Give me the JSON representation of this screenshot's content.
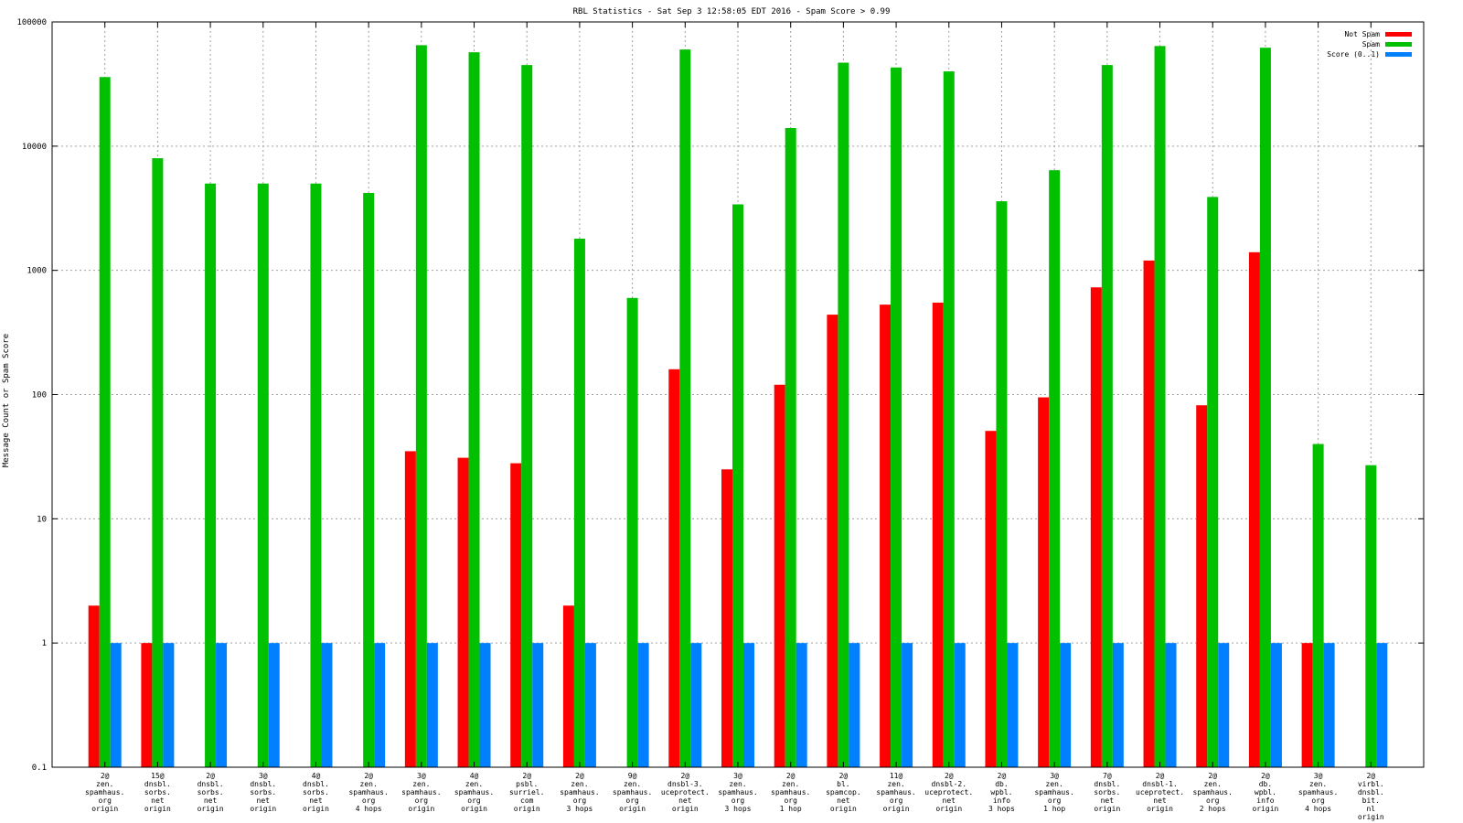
{
  "chart_data": {
    "type": "bar",
    "title": "RBL Statistics - Sat Sep  3 12:58:05 EDT 2016 - Spam Score > 0.99",
    "ylabel": "Message Count or Spam Score",
    "xlabel": "",
    "yscale": "log",
    "ylim": [
      0.1,
      100000
    ],
    "yticks": [
      "0.1",
      "1",
      "10",
      "100",
      "1000",
      "10000",
      "100000"
    ],
    "grid": true,
    "legend_position": "top-right",
    "categories": [
      [
        "2@",
        "zen.",
        "spamhaus.",
        "org",
        "origin"
      ],
      [
        "15@",
        "dnsbl.",
        "sorbs.",
        "net",
        "origin"
      ],
      [
        "2@",
        "dnsbl.",
        "sorbs.",
        "net",
        "origin"
      ],
      [
        "3@",
        "dnsbl.",
        "sorbs.",
        "net",
        "origin"
      ],
      [
        "4@",
        "dnsbl.",
        "sorbs.",
        "net",
        "origin"
      ],
      [
        "2@",
        "zen.",
        "spamhaus.",
        "org",
        "4 hops"
      ],
      [
        "3@",
        "zen.",
        "spamhaus.",
        "org",
        "origin"
      ],
      [
        "4@",
        "zen.",
        "spamhaus.",
        "org",
        "origin"
      ],
      [
        "2@",
        "psbl.",
        "surriel.",
        "com",
        "origin"
      ],
      [
        "2@",
        "zen.",
        "spamhaus.",
        "org",
        "3 hops"
      ],
      [
        "9@",
        "zen.",
        "spamhaus.",
        "org",
        "origin"
      ],
      [
        "2@",
        "dnsbl-3.",
        "uceprotect.",
        "net",
        "origin"
      ],
      [
        "3@",
        "zen.",
        "spamhaus.",
        "org",
        "3 hops"
      ],
      [
        "2@",
        "zen.",
        "spamhaus.",
        "org",
        "1 hop"
      ],
      [
        "2@",
        "bl.",
        "spamcop.",
        "net",
        "origin"
      ],
      [
        "11@",
        "zen.",
        "spamhaus.",
        "org",
        "origin"
      ],
      [
        "2@",
        "dnsbl-2.",
        "uceprotect.",
        "net",
        "origin"
      ],
      [
        "2@",
        "db.",
        "wpbl.",
        "info",
        "3 hops"
      ],
      [
        "3@",
        "zen.",
        "spamhaus.",
        "org",
        "1 hop"
      ],
      [
        "7@",
        "dnsbl.",
        "sorbs.",
        "net",
        "origin"
      ],
      [
        "2@",
        "dnsbl-1.",
        "uceprotect.",
        "net",
        "origin"
      ],
      [
        "2@",
        "zen.",
        "spamhaus.",
        "org",
        "2 hops"
      ],
      [
        "2@",
        "db.",
        "wpbl.",
        "info",
        "origin"
      ],
      [
        "3@",
        "zen.",
        "spamhaus.",
        "org",
        "4 hops"
      ],
      [
        "2@",
        "virbl.",
        "dnsbl.",
        "bit.",
        "nl",
        "origin"
      ]
    ],
    "series": [
      {
        "name": "Not Spam",
        "color": "#ff0000",
        "values": [
          2,
          1,
          null,
          null,
          null,
          null,
          35,
          31,
          28,
          2,
          null,
          160,
          25,
          120,
          440,
          530,
          550,
          51,
          95,
          730,
          1200,
          82,
          1400,
          1,
          null
        ]
      },
      {
        "name": "Spam",
        "color": "#00c000",
        "values": [
          36000,
          8000,
          5000,
          5000,
          5000,
          4200,
          65000,
          57000,
          45000,
          1800,
          600,
          60000,
          3400,
          14000,
          47000,
          43000,
          40000,
          3600,
          6400,
          45000,
          64000,
          3900,
          62000,
          40,
          27
        ]
      },
      {
        "name": "Score (0..1)",
        "color": "#0080ff",
        "values": [
          1,
          1,
          1,
          1,
          1,
          1,
          1,
          1,
          1,
          1,
          1,
          1,
          1,
          1,
          1,
          1,
          1,
          1,
          1,
          1,
          1,
          1,
          1,
          1,
          1
        ]
      }
    ]
  }
}
